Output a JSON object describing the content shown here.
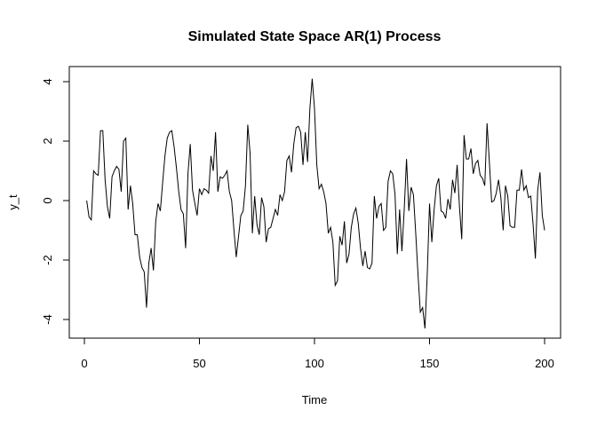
{
  "chart_data": {
    "type": "line",
    "title": "Simulated State Space AR(1) Process",
    "xlabel": "Time",
    "ylabel": "y_t",
    "xlim": [
      0,
      200
    ],
    "ylim": [
      -4.6,
      4.4
    ],
    "xticks": [
      "0",
      "50",
      "100",
      "150",
      "200"
    ],
    "yticks": [
      "-4",
      "-2",
      "0",
      "2",
      "4"
    ],
    "grid": false,
    "line_color": "#000000",
    "x_start": 1,
    "values": [
      0,
      -0.55,
      -0.65,
      1.0,
      0.9,
      0.85,
      2.35,
      2.35,
      0.7,
      -0.2,
      -0.6,
      0.8,
      1.0,
      1.15,
      1.05,
      0.3,
      2.0,
      2.1,
      -0.3,
      0.5,
      -0.1,
      -1.15,
      -1.15,
      -1.9,
      -2.25,
      -2.4,
      -3.6,
      -2.1,
      -1.6,
      -2.35,
      -0.7,
      -0.1,
      -0.35,
      0.6,
      1.5,
      2.1,
      2.3,
      2.35,
      1.8,
      1.1,
      0.3,
      -0.3,
      -0.45,
      -1.6,
      0.9,
      1.9,
      0.35,
      -0.1,
      -0.5,
      0.4,
      0.2,
      0.4,
      0.35,
      0.25,
      1.5,
      1.0,
      2.3,
      0.3,
      0.8,
      0.75,
      0.85,
      1.0,
      0.3,
      0.0,
      -1.0,
      -1.9,
      -1.2,
      -0.5,
      -0.35,
      0.5,
      2.55,
      1.6,
      -1.1,
      0.15,
      -0.8,
      -1.15,
      0.1,
      -0.2,
      -1.4,
      -0.95,
      -0.9,
      -0.6,
      -0.3,
      -0.5,
      0.2,
      0.0,
      0.3,
      1.35,
      1.5,
      0.95,
      1.9,
      2.45,
      2.5,
      2.3,
      1.2,
      2.3,
      1.3,
      3.1,
      4.1,
      3.1,
      1.2,
      0.4,
      0.55,
      0.3,
      -0.1,
      -1.1,
      -0.9,
      -1.4,
      -2.85,
      -2.7,
      -1.2,
      -1.5,
      -0.7,
      -2.1,
      -1.8,
      -0.9,
      -0.45,
      -0.25,
      -0.75,
      -1.6,
      -2.2,
      -1.7,
      -2.25,
      -2.3,
      -2.1,
      0.15,
      -0.6,
      -0.2,
      -0.1,
      -1.0,
      -0.9,
      0.65,
      1.0,
      0.9,
      0.2,
      -1.8,
      -0.3,
      -1.7,
      -0.3,
      1.4,
      -0.35,
      0.45,
      0.2,
      -1.1,
      -2.5,
      -3.75,
      -3.6,
      -4.3,
      -2.5,
      -0.1,
      -1.4,
      -0.3,
      0.5,
      0.75,
      -0.35,
      -0.4,
      -0.6,
      0.05,
      -0.3,
      0.7,
      0.25,
      1.2,
      -0.2,
      -1.3,
      2.2,
      1.4,
      1.4,
      1.75,
      0.9,
      1.25,
      1.35,
      0.85,
      0.75,
      0.5,
      2.6,
      1.3,
      -0.05,
      0.0,
      0.25,
      0.7,
      0.1,
      -1.0,
      0.5,
      0.15,
      -0.85,
      -0.9,
      -0.9,
      0.35,
      0.35,
      1.05,
      0.35,
      0.5,
      0.1,
      0.15,
      -0.8,
      -1.95,
      0.35,
      0.95,
      -0.5,
      -1.0
    ]
  }
}
